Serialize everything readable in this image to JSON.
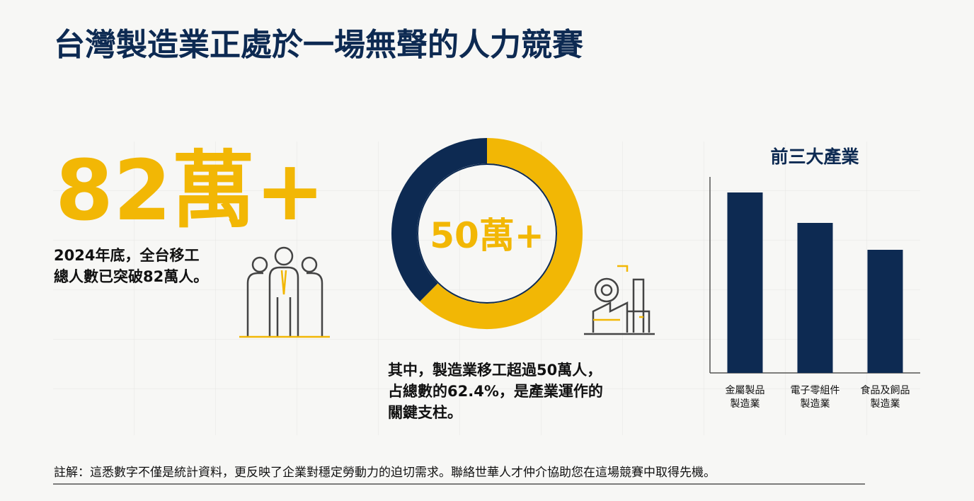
{
  "title": "台灣製造業正處於一場無聲的人力競賽",
  "stat": {
    "headline": "82萬+",
    "text": [
      "2024年底，全台移工",
      "總人數已突破82萬人。"
    ]
  },
  "chart_data": [
    {
      "type": "donut",
      "center_label": "50萬+",
      "values": [
        62.4,
        37.6
      ],
      "colors": [
        "#f2b705",
        "#0d2a52"
      ]
    },
    {
      "type": "bar",
      "title": "前三大產業",
      "categories": [
        [
          "金屬製品",
          "製造業"
        ],
        [
          "電子零組件",
          "製造業"
        ],
        [
          "食品及飼品",
          "製造業"
        ]
      ],
      "values": [
        255,
        212,
        174
      ],
      "color": "#0d2a52"
    }
  ],
  "caption": [
    "其中，製造業移工超過50萬人，",
    "占總數的62.4%，是產業運作的",
    "關鍵支柱。"
  ],
  "footnote": "註解：這悉數字不僅是統計資料，更反映了企業對穩定勞動力的迫切需求。聯絡世華人才仲介協助您在這場競賽中取得先機。"
}
